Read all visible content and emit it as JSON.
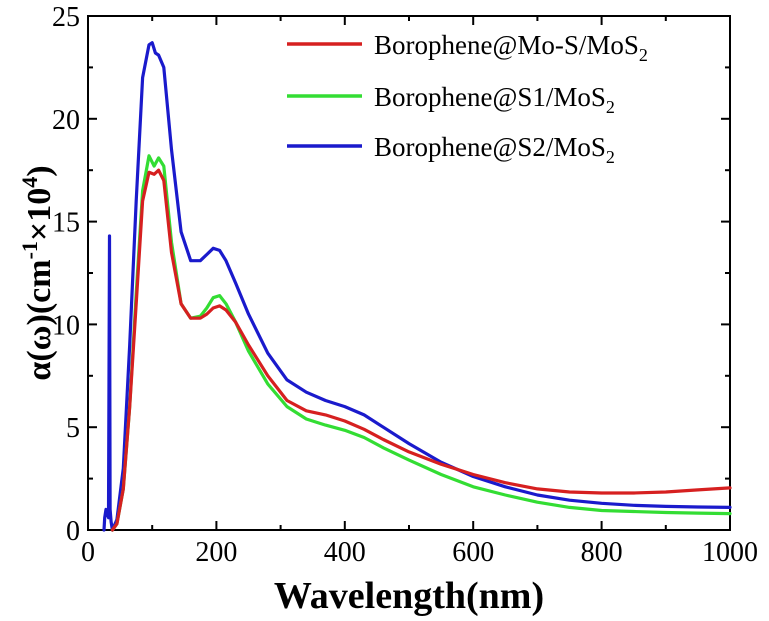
{
  "chart_data": {
    "type": "line",
    "xlabel": "Wavelength(nm)",
    "ylabel": {
      "base": "α(ω)(cm",
      "sup1": "-1",
      "mid": "×10",
      "sup2": "4",
      "end": ")"
    },
    "xlim": [
      0,
      1000
    ],
    "ylim": [
      0,
      25
    ],
    "xticks": [
      0,
      200,
      400,
      600,
      800,
      1000
    ],
    "yticks": [
      0,
      5,
      10,
      15,
      20,
      25
    ],
    "xticklabels": [
      "0",
      "200",
      "400",
      "600",
      "800",
      "1000"
    ],
    "yticklabels": [
      "0",
      "5",
      "10",
      "15",
      "20",
      "25"
    ],
    "legend_position": "top-right",
    "series": [
      {
        "name": "Borophene@Mo-S/MoS",
        "name_sub": "2",
        "color": "#d62020",
        "x": [
          38,
          45,
          55,
          65,
          75,
          85,
          95,
          103,
          110,
          118,
          130,
          145,
          160,
          175,
          185,
          195,
          205,
          215,
          230,
          250,
          280,
          310,
          340,
          370,
          400,
          430,
          460,
          500,
          550,
          600,
          650,
          700,
          750,
          800,
          850,
          900,
          950,
          1000
        ],
        "y": [
          0,
          0.3,
          2,
          6,
          11,
          16,
          17.4,
          17.3,
          17.5,
          17,
          13.5,
          11,
          10.3,
          10.3,
          10.5,
          10.8,
          10.9,
          10.7,
          10.1,
          9,
          7.5,
          6.3,
          5.8,
          5.6,
          5.3,
          4.9,
          4.4,
          3.8,
          3.2,
          2.7,
          2.3,
          2.0,
          1.85,
          1.8,
          1.8,
          1.85,
          1.95,
          2.05
        ]
      },
      {
        "name": "Borophene@S1/MoS",
        "name_sub": "2",
        "color": "#33dd33",
        "x": [
          38,
          45,
          55,
          65,
          75,
          85,
          95,
          103,
          110,
          118,
          130,
          145,
          160,
          175,
          185,
          195,
          205,
          215,
          230,
          250,
          280,
          310,
          340,
          370,
          400,
          430,
          460,
          500,
          550,
          600,
          650,
          700,
          750,
          800,
          850,
          900,
          950,
          1000
        ],
        "y": [
          0,
          0.3,
          2,
          6,
          11.5,
          16.5,
          18.2,
          17.7,
          18.1,
          17.7,
          14,
          11,
          10.3,
          10.4,
          10.8,
          11.3,
          11.4,
          11,
          10.1,
          8.7,
          7.1,
          6.0,
          5.4,
          5.1,
          4.85,
          4.5,
          4.0,
          3.4,
          2.7,
          2.1,
          1.7,
          1.35,
          1.1,
          0.95,
          0.9,
          0.85,
          0.82,
          0.8
        ]
      },
      {
        "name": "Borophene@S2/MoS",
        "name_sub": "2",
        "color": "#1a1acc",
        "x": [
          25,
          26,
          28,
          30,
          32,
          33.5,
          34.5,
          36,
          38,
          45,
          55,
          65,
          75,
          85,
          95,
          100,
          105,
          110,
          118,
          130,
          145,
          160,
          175,
          185,
          195,
          205,
          215,
          230,
          250,
          280,
          310,
          340,
          370,
          400,
          430,
          460,
          500,
          550,
          600,
          650,
          700,
          750,
          800,
          850,
          900,
          950,
          1000
        ],
        "y": [
          0,
          0.6,
          1.0,
          0.8,
          0.6,
          14.3,
          1.0,
          0.4,
          0,
          0.5,
          3,
          9,
          16,
          22,
          23.6,
          23.7,
          23.2,
          23.1,
          22.5,
          18.5,
          14.5,
          13.1,
          13.1,
          13.4,
          13.7,
          13.6,
          13.1,
          12.0,
          10.5,
          8.6,
          7.3,
          6.7,
          6.3,
          6.0,
          5.6,
          5.0,
          4.2,
          3.3,
          2.6,
          2.1,
          1.7,
          1.45,
          1.3,
          1.2,
          1.15,
          1.12,
          1.1
        ]
      }
    ]
  }
}
